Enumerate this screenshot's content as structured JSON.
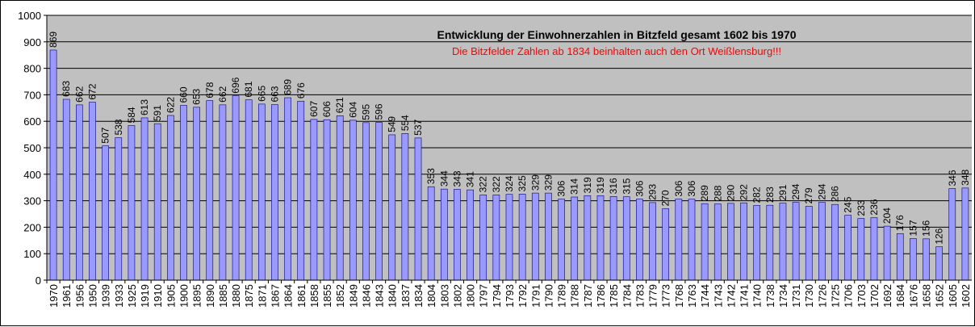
{
  "chart_data": {
    "type": "bar",
    "title": "Entwicklung der Einwohnerzahlen in Bitzfeld gesamt 1602 bis 1970",
    "subtitle": "Die Bitzfelder Zahlen ab 1834 beinhalten auch den Ort Weißlensburg!!!",
    "categories": [
      "1970",
      "1961",
      "1956",
      "1950",
      "1939",
      "1933",
      "1925",
      "1919",
      "1910",
      "1905",
      "1900",
      "1895",
      "1890",
      "1885",
      "1880",
      "1875",
      "1871",
      "1867",
      "1864",
      "1861",
      "1858",
      "1855",
      "1852",
      "1849",
      "1846",
      "1843",
      "1840",
      "1837",
      "1834",
      "1804",
      "1803",
      "1802",
      "1800",
      "1797",
      "1794",
      "1793",
      "1792",
      "1791",
      "1790",
      "1789",
      "1788",
      "1787",
      "1786",
      "1785",
      "1784",
      "1783",
      "1779",
      "1773",
      "1768",
      "1763",
      "1744",
      "1743",
      "1742",
      "1741",
      "1740",
      "1738",
      "1734",
      "1731",
      "1730",
      "1726",
      "1725",
      "1706",
      "1703",
      "1702",
      "1692",
      "1684",
      "1676",
      "1658",
      "1652",
      "1605",
      "1602"
    ],
    "values": [
      869,
      683,
      662,
      672,
      507,
      538,
      584,
      613,
      591,
      622,
      660,
      653,
      678,
      662,
      696,
      681,
      665,
      663,
      689,
      676,
      607,
      606,
      621,
      604,
      595,
      596,
      549,
      554,
      537,
      353,
      344,
      343,
      341,
      322,
      322,
      324,
      325,
      329,
      329,
      306,
      314,
      319,
      319,
      316,
      315,
      306,
      293,
      270,
      306,
      306,
      289,
      288,
      290,
      292,
      282,
      283,
      291,
      294,
      279,
      294,
      286,
      245,
      233,
      236,
      204,
      176,
      157,
      156,
      126,
      346,
      348
    ],
    "ylim": [
      0,
      1000
    ],
    "yticks": [
      0,
      100,
      200,
      300,
      400,
      500,
      600,
      700,
      800,
      900,
      1000
    ],
    "grid": true,
    "legend": "none",
    "colors": {
      "plot_background": "#c0c0c0",
      "bar_fill": "#9999ff",
      "bar_stroke": "#000080",
      "gridline": "#000000",
      "subtitle": "#ff0000"
    }
  }
}
